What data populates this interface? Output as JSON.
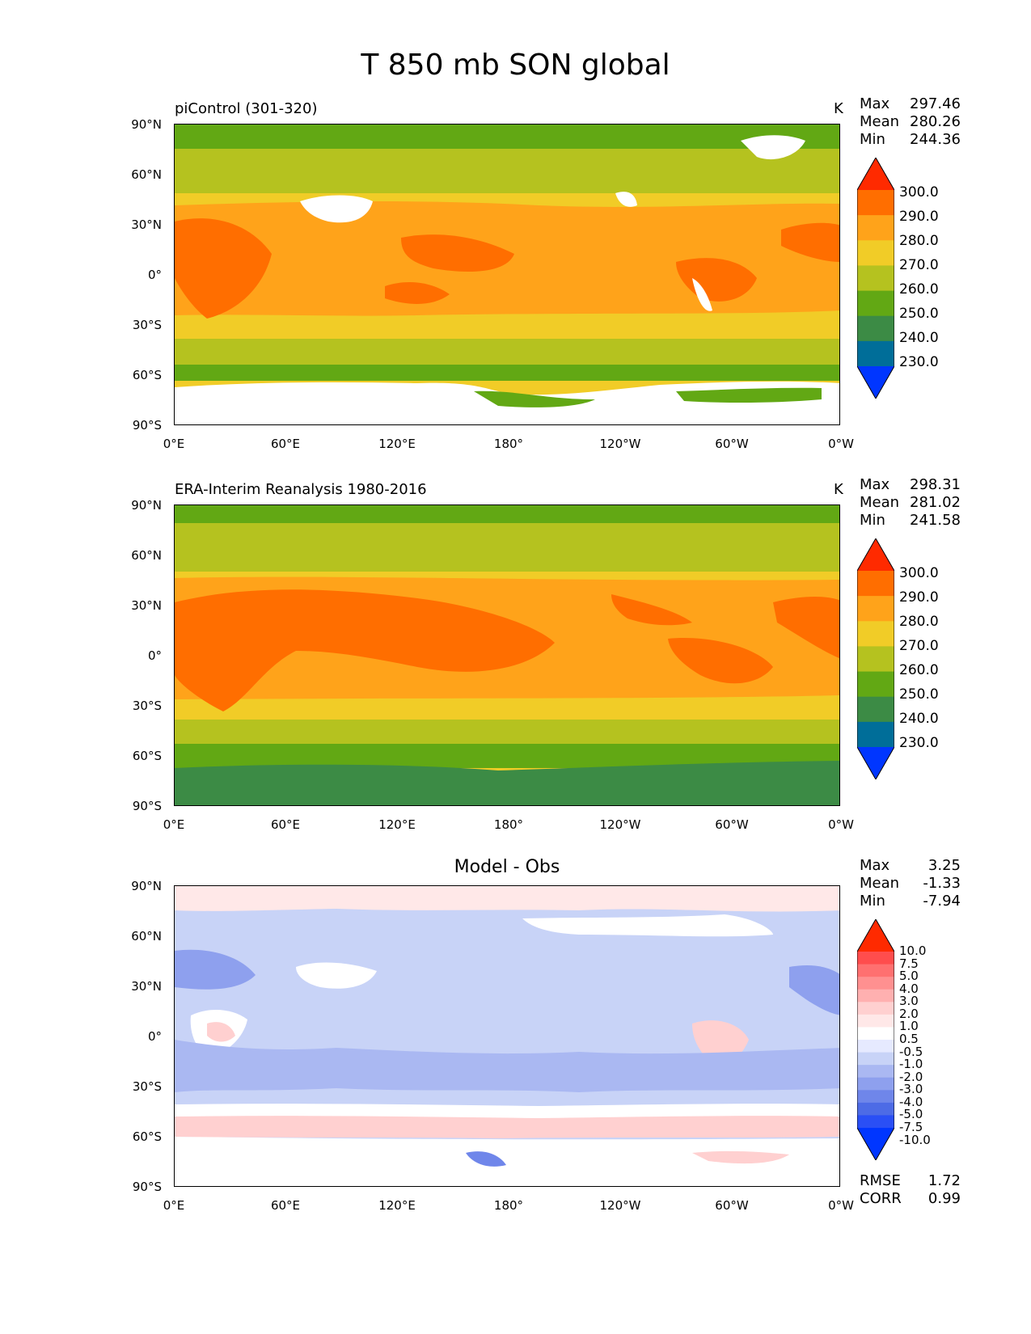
{
  "title": "T 850 mb SON global",
  "panels": [
    {
      "label": "piControl (301-320)",
      "units": "K",
      "stats": {
        "max_label": "Max",
        "max": "297.46",
        "mean_label": "Mean",
        "mean": "280.26",
        "min_label": "Min",
        "min": "244.36"
      },
      "colorbar": [
        "300.0",
        "290.0",
        "280.0",
        "270.0",
        "260.0",
        "250.0",
        "240.0",
        "230.0"
      ]
    },
    {
      "label": "ERA-Interim Reanalysis 1980-2016",
      "units": "K",
      "stats": {
        "max_label": "Max",
        "max": "298.31",
        "mean_label": "Mean",
        "mean": "281.02",
        "min_label": "Min",
        "min": "241.58"
      },
      "colorbar": [
        "300.0",
        "290.0",
        "280.0",
        "270.0",
        "260.0",
        "250.0",
        "240.0",
        "230.0"
      ]
    },
    {
      "label": "Model - Obs",
      "units": "",
      "stats": {
        "max_label": "Max",
        "max": "3.25",
        "mean_label": "Mean",
        "mean": "-1.33",
        "min_label": "Min",
        "min": "-7.94"
      },
      "colorbar": [
        "10.0",
        "7.5",
        "5.0",
        "4.0",
        "3.0",
        "2.0",
        "1.0",
        "0.5",
        "-0.5",
        "-1.0",
        "-2.0",
        "-3.0",
        "-4.0",
        "-5.0",
        "-7.5",
        "-10.0"
      ],
      "metrics": {
        "rmse_label": "RMSE",
        "rmse": "1.72",
        "corr_label": "CORR",
        "corr": "0.99"
      }
    }
  ],
  "axes": {
    "y_ticks": [
      "90°N",
      "60°N",
      "30°N",
      "0°",
      "30°S",
      "60°S",
      "90°S"
    ],
    "x_ticks": [
      "0°E",
      "60°E",
      "120°E",
      "180°",
      "120°W",
      "60°W",
      "0°W"
    ]
  },
  "colors": {
    "abs_scale": [
      "#ff2a00",
      "#ff6e00",
      "#ffa31a",
      "#f1cc27",
      "#b5c21f",
      "#62a814",
      "#3c8b45",
      "#006e99",
      "#0036ff"
    ],
    "diff_scale": [
      "#ff2a00",
      "#ff4d4d",
      "#ff7070",
      "#ff9090",
      "#ffb0b0",
      "#ffd0d0",
      "#ffe8e8",
      "#ffffff",
      "#e6eaff",
      "#c8d3f7",
      "#aab8f2",
      "#8ea0ee",
      "#6f86ea",
      "#4d6be6",
      "#2a4ff5",
      "#0036ff"
    ]
  }
}
